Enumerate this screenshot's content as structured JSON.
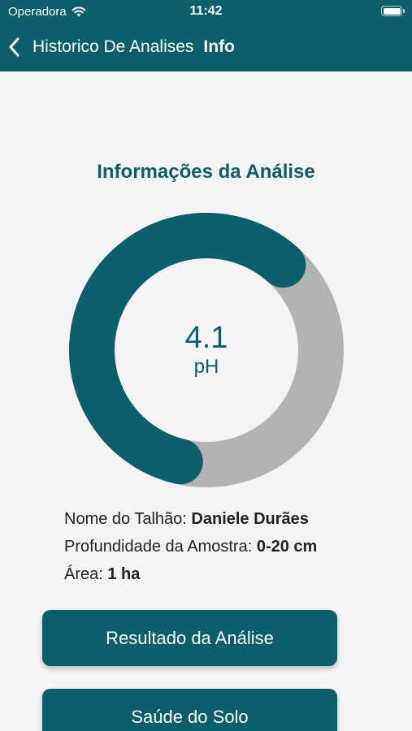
{
  "status_bar": {
    "carrier": "Operadora",
    "time": "11:42"
  },
  "nav": {
    "back_label": "Historico De Analises",
    "title": "Info"
  },
  "section_title": "Informações da Análise",
  "gauge": {
    "value": "4.1",
    "unit": "pH",
    "fill_fraction": 0.58,
    "fill_color": "#0b5f6c",
    "track_color": "#b3b3b3"
  },
  "info": {
    "field_label": "Nome do Talhão:",
    "field_value": "Daniele Durães",
    "depth_label": "Profundidade da Amostra:",
    "depth_value": "0-20 cm",
    "area_label": "Área:",
    "area_value": "1 ha"
  },
  "buttons": {
    "result": "Resultado da Análise",
    "soil_health": "Saúde do Solo"
  },
  "colors": {
    "primary": "#0b5f6c",
    "background": "#f4f4f4"
  }
}
